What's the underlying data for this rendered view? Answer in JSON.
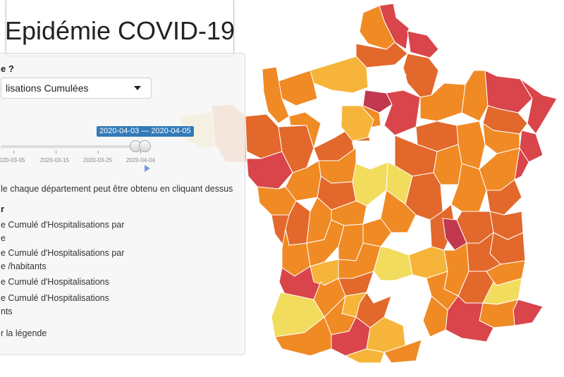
{
  "title": "Epidémie COVID-19",
  "controls": {
    "question_label": "e ?",
    "select_value": "lisations Cumulées",
    "date_range_badge": "2020-04-03 — 2020-04-05",
    "timeline_ticks": [
      "020-03-05",
      "2020-03-15",
      "2020-03-25",
      "2020-04-04"
    ],
    "info_text": "le chaque département peut être obtenu en cliquant dessus",
    "variable_header": "r",
    "options": [
      {
        "line1": "e Cumulé d'Hospitalisations par",
        "line2": "e"
      },
      {
        "line1": "e Cumulé d'Hospitalisations par",
        "line2": "e /habitants"
      },
      {
        "line1": "e Cumulé d'Hospitalisations",
        "line2": ""
      },
      {
        "line1": "e Cumulé d'Hospitalisations",
        "line2": "nts"
      }
    ],
    "legend_toggle": "r la légende"
  },
  "colors": {
    "white": "#ffffff",
    "yellow": "#f2dc5d",
    "gold": "#f6b53a",
    "orange": "#f08a24",
    "dark_orange": "#e2682b",
    "red": "#d9454a",
    "crimson": "#c1384f",
    "peach": "#f6b088",
    "pale_yellow": "#f7e4a0",
    "slider_accent": "#337ab7"
  },
  "map": {
    "departments": [
      {
        "id": "nord-1",
        "color": "red"
      },
      {
        "id": "nord-2",
        "color": "red"
      },
      {
        "id": "pas-de-calais",
        "color": "orange"
      },
      {
        "id": "somme",
        "color": "dark_orange"
      },
      {
        "id": "aisne",
        "color": "dark_orange"
      },
      {
        "id": "oise",
        "color": "white"
      },
      {
        "id": "ardennes",
        "color": "white"
      },
      {
        "id": "seine-maritime",
        "color": "gold"
      },
      {
        "id": "calvados",
        "color": "orange"
      },
      {
        "id": "eure",
        "color": "white"
      },
      {
        "id": "manche",
        "color": "orange"
      },
      {
        "id": "finistere-1",
        "color": "pale_yellow"
      },
      {
        "id": "finistere-2",
        "color": "peach"
      },
      {
        "id": "cotes-armor",
        "color": "dark_orange"
      },
      {
        "id": "morbihan",
        "color": "red"
      },
      {
        "id": "ille-et-vilaine",
        "color": "dark_orange"
      },
      {
        "id": "mayenne",
        "color": "orange"
      },
      {
        "id": "orne",
        "color": "white"
      },
      {
        "id": "sarthe",
        "color": "dark_orange"
      },
      {
        "id": "idf-core",
        "color": "crimson"
      },
      {
        "id": "val-oise",
        "color": "orange"
      },
      {
        "id": "yvelines",
        "color": "dark_orange"
      },
      {
        "id": "eure-et-loir",
        "color": "gold"
      },
      {
        "id": "seine-et-marne",
        "color": "red"
      },
      {
        "id": "marne",
        "color": "orange"
      },
      {
        "id": "meuse",
        "color": "orange"
      },
      {
        "id": "moselle",
        "color": "red"
      },
      {
        "id": "bas-rhin",
        "color": "red"
      },
      {
        "id": "haut-rhin",
        "color": "red"
      },
      {
        "id": "meurthe",
        "color": "dark_orange"
      },
      {
        "id": "vosges",
        "color": "orange"
      },
      {
        "id": "aube",
        "color": "dark_orange"
      },
      {
        "id": "haute-marne",
        "color": "orange"
      },
      {
        "id": "loiret",
        "color": "white"
      },
      {
        "id": "yonne",
        "color": "dark_orange"
      },
      {
        "id": "loir-et-cher",
        "color": "orange"
      },
      {
        "id": "indre-et-loire",
        "color": "dark_orange"
      },
      {
        "id": "maine-et-loire",
        "color": "orange"
      },
      {
        "id": "loire-atlantique",
        "color": "orange"
      },
      {
        "id": "vendee",
        "color": "dark_orange"
      },
      {
        "id": "cher",
        "color": "yellow"
      },
      {
        "id": "nievre",
        "color": "yellow"
      },
      {
        "id": "indre",
        "color": "orange"
      },
      {
        "id": "vienne",
        "color": "orange"
      },
      {
        "id": "deux-sevres",
        "color": "dark_orange"
      },
      {
        "id": "cote-or",
        "color": "orange"
      },
      {
        "id": "saone-loire",
        "color": "dark_orange"
      },
      {
        "id": "jura",
        "color": "orange"
      },
      {
        "id": "doubs",
        "color": "orange"
      },
      {
        "id": "territoire-belfort",
        "color": "red"
      },
      {
        "id": "haute-saone",
        "color": "dark_orange"
      },
      {
        "id": "allier",
        "color": "orange"
      },
      {
        "id": "creuse",
        "color": "orange"
      },
      {
        "id": "charente-maritime",
        "color": "orange"
      },
      {
        "id": "charente",
        "color": "orange"
      },
      {
        "id": "haute-vienne",
        "color": "orange"
      },
      {
        "id": "puy-de-dome",
        "color": "white"
      },
      {
        "id": "loire",
        "color": "dark_orange"
      },
      {
        "id": "rhone",
        "color": "crimson"
      },
      {
        "id": "ain",
        "color": "dark_orange"
      },
      {
        "id": "haute-savoie",
        "color": "dark_orange"
      },
      {
        "id": "savoie",
        "color": "dark_orange"
      },
      {
        "id": "isere",
        "color": "dark_orange"
      },
      {
        "id": "gironde",
        "color": "red"
      },
      {
        "id": "dordogne",
        "color": "gold"
      },
      {
        "id": "correze",
        "color": "orange"
      },
      {
        "id": "cantal",
        "color": "yellow"
      },
      {
        "id": "haute-loire",
        "color": "gold"
      },
      {
        "id": "ardeche",
        "color": "orange"
      },
      {
        "id": "drome",
        "color": "dark_orange"
      },
      {
        "id": "hautes-alpes",
        "color": "orange"
      },
      {
        "id": "landes",
        "color": "yellow"
      },
      {
        "id": "lot-et-garonne",
        "color": "orange"
      },
      {
        "id": "lot",
        "color": "dark_orange"
      },
      {
        "id": "aveyron",
        "color": "white"
      },
      {
        "id": "lozere",
        "color": "white"
      },
      {
        "id": "gard",
        "color": "white"
      },
      {
        "id": "vaucluse",
        "color": "orange"
      },
      {
        "id": "alpes-hp",
        "color": "yellow"
      },
      {
        "id": "alpes-maritimes",
        "color": "red"
      },
      {
        "id": "var",
        "color": "orange"
      },
      {
        "id": "bouches-du-rhone",
        "color": "red"
      },
      {
        "id": "herault",
        "color": "orange"
      },
      {
        "id": "tarn",
        "color": "dark_orange"
      },
      {
        "id": "tarn-et-garonne",
        "color": "gold"
      },
      {
        "id": "gers",
        "color": "orange"
      },
      {
        "id": "haute-garonne",
        "color": "red"
      },
      {
        "id": "pyrenees-atlantiques",
        "color": "orange"
      },
      {
        "id": "hautes-pyrenees",
        "color": "white"
      },
      {
        "id": "ariege",
        "color": "gold"
      },
      {
        "id": "aude",
        "color": "gold"
      },
      {
        "id": "pyrenees-orientales",
        "color": "orange"
      }
    ]
  }
}
